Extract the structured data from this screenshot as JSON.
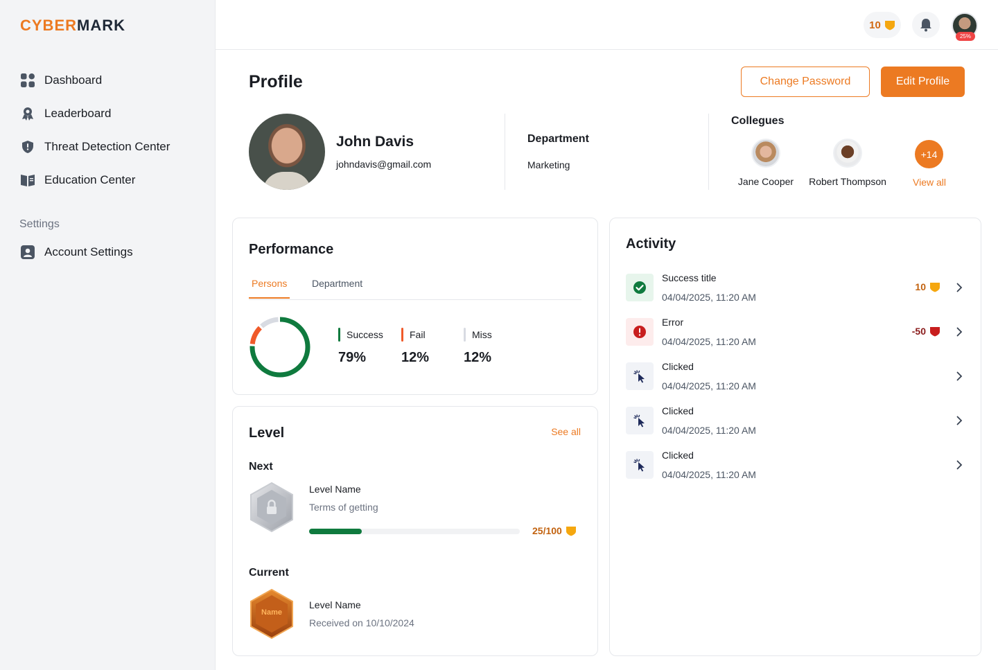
{
  "app": {
    "logo_part1": "CYBER",
    "logo_part2": "MARK"
  },
  "sidebar": {
    "items": [
      {
        "label": "Dashboard",
        "icon": "grid-icon"
      },
      {
        "label": "Leaderboard",
        "icon": "award-icon"
      },
      {
        "label": "Threat Detection Center",
        "icon": "shield-icon"
      },
      {
        "label": "Education Center",
        "icon": "book-icon"
      }
    ],
    "settings_heading": "Settings",
    "settings_items": [
      {
        "label": "Account Settings",
        "icon": "user-square-icon"
      }
    ]
  },
  "topbar": {
    "points": "10",
    "avatar_badge": "25%"
  },
  "profile": {
    "title": "Profile",
    "change_password": "Change Password",
    "edit_profile": "Edit Profile",
    "name": "John Davis",
    "email": "johndavis@gmail.com",
    "department_label": "Department",
    "department_value": "Marketing",
    "colleagues_label": "Collegues",
    "colleagues": [
      {
        "name": "Jane Cooper"
      },
      {
        "name": "Robert Thompson"
      }
    ],
    "more_count": "+14",
    "view_all": "View all"
  },
  "performance": {
    "title": "Performance",
    "tabs": [
      {
        "label": "Persons",
        "active": true
      },
      {
        "label": "Department",
        "active": false
      }
    ],
    "stats": [
      {
        "label": "Success",
        "value": "79%",
        "color": "#0f7a3e"
      },
      {
        "label": "Fail",
        "value": "12%",
        "color": "#f05a2a"
      },
      {
        "label": "Miss",
        "value": "12%",
        "color": "#d8dbe2"
      }
    ],
    "donut": {
      "success": 79,
      "fail": 12,
      "miss": 12
    }
  },
  "level": {
    "title": "Level",
    "see_all": "See all",
    "next_label": "Next",
    "next_name": "Level Name",
    "next_sub": "Terms of getting",
    "progress_text": "25/100",
    "progress_fraction": 0.25,
    "current_label": "Current",
    "current_badge_text": "Name",
    "current_name": "Level Name",
    "current_sub": "Received on 10/10/2024"
  },
  "activity": {
    "title": "Activity",
    "items": [
      {
        "title": "Success title",
        "time": "04/04/2025, 11:20 AM",
        "points": "10",
        "type": "success"
      },
      {
        "title": "Error",
        "time": "04/04/2025, 11:20 AM",
        "points": "-50",
        "type": "error"
      },
      {
        "title": "Clicked",
        "time": "04/04/2025, 11:20 AM",
        "points": "",
        "type": "clicked"
      },
      {
        "title": "Clicked",
        "time": "04/04/2025, 11:20 AM",
        "points": "",
        "type": "clicked"
      },
      {
        "title": "Clicked",
        "time": "04/04/2025, 11:20 AM",
        "points": "",
        "type": "clicked"
      }
    ]
  },
  "colors": {
    "accent": "#ec7a22",
    "success": "#0f7a3e",
    "error": "#c81e1e"
  }
}
